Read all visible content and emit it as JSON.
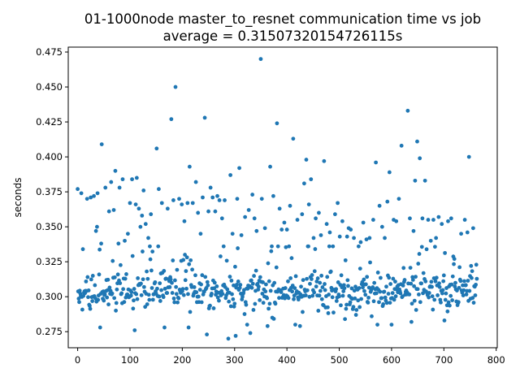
{
  "chart_data": {
    "type": "scatter",
    "title": "01-1000node master_to_resnet communication time vs job",
    "subtitle": "average = 0.31507320154726115s",
    "xlabel": "",
    "ylabel": "seconds",
    "xlim": [
      -18,
      802
    ],
    "ylim": [
      0.2635,
      0.4785
    ],
    "xticks": [
      0,
      100,
      200,
      300,
      400,
      500,
      600,
      700,
      800
    ],
    "yticks": [
      0.275,
      0.3,
      0.325,
      0.35,
      0.375,
      0.4,
      0.425,
      0.45,
      0.475
    ],
    "grid": false,
    "marker_color": "#1f77b4",
    "n_points": 764,
    "outliers": [
      [
        0,
        0.377
      ],
      [
        7,
        0.374
      ],
      [
        10,
        0.334
      ],
      [
        18,
        0.37
      ],
      [
        25,
        0.371
      ],
      [
        31,
        0.372
      ],
      [
        35,
        0.347
      ],
      [
        37,
        0.35
      ],
      [
        38,
        0.374
      ],
      [
        43,
        0.278
      ],
      [
        45,
        0.338
      ],
      [
        46,
        0.409
      ],
      [
        53,
        0.378
      ],
      [
        60,
        0.361
      ],
      [
        64,
        0.382
      ],
      [
        69,
        0.362
      ],
      [
        72,
        0.39
      ],
      [
        78,
        0.338
      ],
      [
        80,
        0.378
      ],
      [
        86,
        0.384
      ],
      [
        90,
        0.34
      ],
      [
        96,
        0.345
      ],
      [
        100,
        0.367
      ],
      [
        104,
        0.384
      ],
      [
        109,
        0.276
      ],
      [
        111,
        0.366
      ],
      [
        113,
        0.385
      ],
      [
        117,
        0.363
      ],
      [
        120,
        0.35
      ],
      [
        123,
        0.358
      ],
      [
        126,
        0.376
      ],
      [
        130,
        0.352
      ],
      [
        135,
        0.342
      ],
      [
        140,
        0.359
      ],
      [
        151,
        0.406
      ],
      [
        155,
        0.377
      ],
      [
        161,
        0.367
      ],
      [
        166,
        0.278
      ],
      [
        172,
        0.363
      ],
      [
        179,
        0.427
      ],
      [
        183,
        0.369
      ],
      [
        187,
        0.45
      ],
      [
        194,
        0.37
      ],
      [
        199,
        0.366
      ],
      [
        204,
        0.354
      ],
      [
        210,
        0.367
      ],
      [
        212,
        0.278
      ],
      [
        214,
        0.393
      ],
      [
        220,
        0.367
      ],
      [
        226,
        0.382
      ],
      [
        230,
        0.36
      ],
      [
        235,
        0.345
      ],
      [
        239,
        0.371
      ],
      [
        243,
        0.428
      ],
      [
        247,
        0.273
      ],
      [
        250,
        0.361
      ],
      [
        254,
        0.378
      ],
      [
        258,
        0.371
      ],
      [
        263,
        0.361
      ],
      [
        267,
        0.372
      ],
      [
        271,
        0.369
      ],
      [
        276,
        0.356
      ],
      [
        281,
        0.369
      ],
      [
        288,
        0.27
      ],
      [
        292,
        0.387
      ],
      [
        296,
        0.345
      ],
      [
        302,
        0.272
      ],
      [
        305,
        0.37
      ],
      [
        309,
        0.392
      ],
      [
        313,
        0.344
      ],
      [
        320,
        0.357
      ],
      [
        324,
        0.28
      ],
      [
        327,
        0.362
      ],
      [
        330,
        0.274
      ],
      [
        334,
        0.373
      ],
      [
        338,
        0.356
      ],
      [
        342,
        0.347
      ],
      [
        350,
        0.47
      ],
      [
        352,
        0.37
      ],
      [
        358,
        0.349
      ],
      [
        363,
        0.279
      ],
      [
        368,
        0.393
      ],
      [
        372,
        0.285
      ],
      [
        374,
        0.372
      ],
      [
        381,
        0.424
      ],
      [
        386,
        0.363
      ],
      [
        390,
        0.348
      ],
      [
        395,
        0.353
      ],
      [
        400,
        0.348
      ],
      [
        406,
        0.365
      ],
      [
        412,
        0.413
      ],
      [
        416,
        0.28
      ],
      [
        420,
        0.355
      ],
      [
        425,
        0.279
      ],
      [
        429,
        0.359
      ],
      [
        433,
        0.381
      ],
      [
        437,
        0.398
      ],
      [
        442,
        0.366
      ],
      [
        446,
        0.384
      ],
      [
        451,
        0.342
      ],
      [
        455,
        0.356
      ],
      [
        461,
        0.36
      ],
      [
        465,
        0.344
      ],
      [
        471,
        0.397
      ],
      [
        476,
        0.352
      ],
      [
        482,
        0.346
      ],
      [
        488,
        0.336
      ],
      [
        492,
        0.359
      ],
      [
        497,
        0.367
      ],
      [
        501,
        0.343
      ],
      [
        506,
        0.354
      ],
      [
        511,
        0.284
      ],
      [
        515,
        0.343
      ],
      [
        518,
        0.349
      ],
      [
        522,
        0.348
      ],
      [
        528,
        0.342
      ],
      [
        532,
        0.287
      ],
      [
        537,
        0.336
      ],
      [
        541,
        0.339
      ],
      [
        546,
        0.353
      ],
      [
        552,
        0.341
      ],
      [
        558,
        0.342
      ],
      [
        562,
        0.286
      ],
      [
        565,
        0.355
      ],
      [
        570,
        0.396
      ],
      [
        573,
        0.28
      ],
      [
        577,
        0.365
      ],
      [
        582,
        0.35
      ],
      [
        587,
        0.342
      ],
      [
        592,
        0.368
      ],
      [
        596,
        0.389
      ],
      [
        600,
        0.28
      ],
      [
        604,
        0.355
      ],
      [
        609,
        0.354
      ],
      [
        614,
        0.37
      ],
      [
        619,
        0.408
      ],
      [
        625,
        0.312
      ],
      [
        631,
        0.433
      ],
      [
        635,
        0.356
      ],
      [
        638,
        0.282
      ],
      [
        642,
        0.347
      ],
      [
        645,
        0.383
      ],
      [
        649,
        0.411
      ],
      [
        654,
        0.399
      ],
      [
        659,
        0.356
      ],
      [
        664,
        0.383
      ],
      [
        670,
        0.355
      ],
      [
        675,
        0.34
      ],
      [
        680,
        0.355
      ],
      [
        685,
        0.342
      ],
      [
        690,
        0.357
      ],
      [
        696,
        0.352
      ],
      [
        701,
        0.283
      ],
      [
        708,
        0.354
      ],
      [
        714,
        0.356
      ],
      [
        720,
        0.327
      ],
      [
        726,
        0.294
      ],
      [
        733,
        0.345
      ],
      [
        740,
        0.355
      ],
      [
        745,
        0.346
      ],
      [
        748,
        0.4
      ],
      [
        752,
        0.322
      ],
      [
        756,
        0.349
      ],
      [
        760,
        0.301
      ]
    ],
    "dense": {
      "x_start": 0,
      "x_end": 763,
      "center": 0.3035,
      "spread": 0.0105,
      "floor": 0.28,
      "ceil": 0.336
    }
  }
}
